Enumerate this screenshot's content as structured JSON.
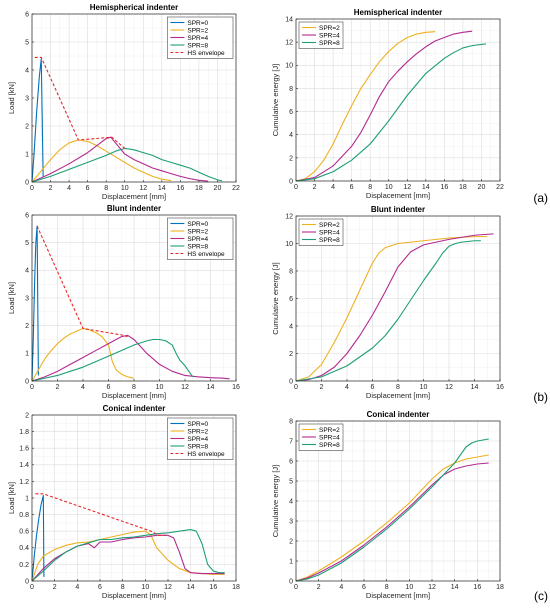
{
  "panel_labels": [
    "(a)",
    "(b)",
    "(c)"
  ],
  "chart_data": [
    {
      "type": "line",
      "title": "Hemispherical indenter",
      "xlabel": "Displacement [mm]",
      "ylabel": "Load [kN]",
      "xlim": [
        0,
        22
      ],
      "ylim": [
        0,
        6
      ],
      "xticks": [
        0,
        2,
        4,
        6,
        8,
        10,
        12,
        14,
        16,
        18,
        20,
        22
      ],
      "yticks": [
        0,
        1,
        2,
        3,
        4,
        5,
        6
      ],
      "grid": true,
      "legend_position": "top-right",
      "series": [
        {
          "name": "SPR=0",
          "color": "#0072bd",
          "dash": false,
          "x": [
            0,
            0.2,
            0.5,
            0.8,
            1.0,
            1.2
          ],
          "y": [
            0,
            0.9,
            2.5,
            3.8,
            4.4,
            0.2
          ]
        },
        {
          "name": "SPR=2",
          "color": "#edb120",
          "dash": false,
          "x": [
            0,
            1,
            2,
            3,
            4,
            5,
            6,
            7,
            8,
            9,
            10,
            11,
            12,
            13,
            14,
            15
          ],
          "y": [
            0,
            0.4,
            0.8,
            1.15,
            1.4,
            1.5,
            1.45,
            1.3,
            1.1,
            0.9,
            0.7,
            0.5,
            0.35,
            0.2,
            0.1,
            0.05
          ]
        },
        {
          "name": "SPR=4",
          "color": "#b2298f",
          "dash": false,
          "x": [
            0,
            2,
            4,
            6,
            7,
            8,
            8.5,
            9,
            10,
            11,
            12,
            13,
            14,
            15,
            16,
            17,
            18,
            19
          ],
          "y": [
            0,
            0.3,
            0.65,
            1.05,
            1.3,
            1.55,
            1.6,
            1.4,
            1.0,
            0.8,
            0.65,
            0.5,
            0.4,
            0.3,
            0.2,
            0.12,
            0.06,
            0.03
          ]
        },
        {
          "name": "SPR=8",
          "color": "#1b9e77",
          "dash": false,
          "x": [
            0,
            2,
            4,
            6,
            8,
            9,
            10,
            11,
            12,
            13,
            14,
            15,
            16,
            17,
            18,
            19,
            20,
            20.5
          ],
          "y": [
            0,
            0.2,
            0.45,
            0.7,
            0.95,
            1.1,
            1.2,
            1.15,
            1.05,
            0.95,
            0.8,
            0.7,
            0.6,
            0.5,
            0.35,
            0.2,
            0.08,
            0.04
          ]
        },
        {
          "name": "HS envelope",
          "color": "#e8292a",
          "dash": true,
          "x": [
            0.3,
            1.0,
            5.0,
            8.6,
            10.0
          ],
          "y": [
            4.45,
            4.45,
            1.5,
            1.6,
            1.2
          ]
        }
      ]
    },
    {
      "type": "line",
      "title": "Hemispherical indenter",
      "xlabel": "Displacement [mm]",
      "ylabel": "Cumulative energy [J]",
      "xlim": [
        0,
        22
      ],
      "ylim": [
        0,
        14
      ],
      "xticks": [
        0,
        2,
        4,
        6,
        8,
        10,
        12,
        14,
        16,
        18,
        20,
        22
      ],
      "yticks": [
        0,
        2,
        4,
        6,
        8,
        10,
        12,
        14
      ],
      "grid": true,
      "legend_position": "top-left",
      "series": [
        {
          "name": "SPR=2",
          "color": "#edb120",
          "dash": false,
          "x": [
            0,
            1,
            2,
            3,
            4,
            5,
            6,
            7,
            8,
            9,
            10,
            11,
            12,
            13,
            14,
            15
          ],
          "y": [
            0,
            0.2,
            0.8,
            1.8,
            3.2,
            4.9,
            6.5,
            8.0,
            9.2,
            10.3,
            11.2,
            11.9,
            12.4,
            12.7,
            12.85,
            12.9
          ]
        },
        {
          "name": "SPR=4",
          "color": "#b2298f",
          "dash": false,
          "x": [
            0,
            2,
            4,
            6,
            7,
            8,
            9,
            10,
            11,
            12,
            13,
            14,
            15,
            16,
            17,
            18,
            19
          ],
          "y": [
            0,
            0.3,
            1.3,
            3.0,
            4.2,
            5.7,
            7.3,
            8.6,
            9.5,
            10.3,
            11.0,
            11.6,
            12.1,
            12.4,
            12.7,
            12.85,
            12.95
          ]
        },
        {
          "name": "SPR=8",
          "color": "#1b9e77",
          "dash": false,
          "x": [
            0,
            2,
            4,
            6,
            8,
            10,
            12,
            14,
            16,
            17,
            18,
            19,
            20,
            20.5
          ],
          "y": [
            0,
            0.2,
            0.8,
            1.8,
            3.2,
            5.2,
            7.4,
            9.3,
            10.6,
            11.1,
            11.5,
            11.7,
            11.8,
            11.85
          ]
        }
      ]
    },
    {
      "type": "line",
      "title": "Blunt indenter",
      "xlabel": "Displacement [mm]",
      "ylabel": "Load [kN]",
      "xlim": [
        0,
        16
      ],
      "ylim": [
        0,
        6
      ],
      "xticks": [
        0,
        2,
        4,
        6,
        8,
        10,
        12,
        14,
        16
      ],
      "yticks": [
        0,
        1,
        2,
        3,
        4,
        5,
        6
      ],
      "grid": true,
      "legend_position": "top-right",
      "series": [
        {
          "name": "SPR=0",
          "color": "#0072bd",
          "dash": false,
          "x": [
            0,
            0.1,
            0.2,
            0.3,
            0.4,
            0.5
          ],
          "y": [
            0,
            1.5,
            3.5,
            5.0,
            5.6,
            0.2
          ]
        },
        {
          "name": "SPR=2",
          "color": "#edb120",
          "dash": false,
          "x": [
            0,
            0.5,
            1,
            1.5,
            2,
            2.5,
            3,
            3.5,
            4,
            4.5,
            5,
            5.5,
            6,
            6.3,
            6.6,
            7,
            7.5,
            8
          ],
          "y": [
            0,
            0.4,
            0.8,
            1.1,
            1.35,
            1.55,
            1.7,
            1.8,
            1.9,
            1.85,
            1.75,
            1.6,
            1.3,
            0.7,
            0.4,
            0.25,
            0.15,
            0.1
          ]
        },
        {
          "name": "SPR=4",
          "color": "#b2298f",
          "dash": false,
          "x": [
            0,
            1,
            2,
            3,
            4,
            5,
            6,
            7,
            7.5,
            8,
            8.5,
            9,
            10,
            11,
            12,
            13,
            14,
            15,
            15.5
          ],
          "y": [
            0,
            0.15,
            0.35,
            0.6,
            0.85,
            1.1,
            1.35,
            1.6,
            1.65,
            1.5,
            1.25,
            1.0,
            0.6,
            0.35,
            0.2,
            0.15,
            0.12,
            0.1,
            0.08
          ]
        },
        {
          "name": "SPR=8",
          "color": "#1b9e77",
          "dash": false,
          "x": [
            0,
            1,
            2,
            3,
            4,
            5,
            6,
            7,
            8,
            9,
            9.5,
            10,
            10.5,
            11,
            11.3,
            11.6,
            12,
            12.3,
            12.6
          ],
          "y": [
            0,
            0.1,
            0.2,
            0.35,
            0.5,
            0.7,
            0.9,
            1.1,
            1.3,
            1.45,
            1.5,
            1.5,
            1.45,
            1.3,
            1.0,
            0.75,
            0.55,
            0.35,
            0.15
          ]
        },
        {
          "name": "HS envelope",
          "color": "#e8292a",
          "dash": true,
          "x": [
            0.4,
            4.0,
            7.2,
            7.5
          ],
          "y": [
            5.6,
            1.9,
            1.65,
            1.6
          ]
        }
      ]
    },
    {
      "type": "line",
      "title": "Blunt indenter",
      "xlabel": "Displacement [mm]",
      "ylabel": "Cumulative energy [J]",
      "xlim": [
        0,
        16
      ],
      "ylim": [
        0,
        12
      ],
      "xticks": [
        0,
        2,
        4,
        6,
        8,
        10,
        12,
        14,
        16
      ],
      "yticks": [
        0,
        2,
        4,
        6,
        8,
        10,
        12
      ],
      "grid": true,
      "legend_position": "top-left",
      "series": [
        {
          "name": "SPR=2",
          "color": "#edb120",
          "dash": false,
          "x": [
            0,
            1,
            2,
            3,
            4,
            5,
            5.5,
            6,
            6.5,
            7,
            8,
            10,
            12,
            14,
            15
          ],
          "y": [
            0,
            0.3,
            1.2,
            2.8,
            4.6,
            6.6,
            7.6,
            8.6,
            9.3,
            9.7,
            10.0,
            10.2,
            10.4,
            10.5,
            10.5
          ]
        },
        {
          "name": "SPR=4",
          "color": "#b2298f",
          "dash": false,
          "x": [
            0,
            1,
            2,
            3,
            4,
            5,
            6,
            7,
            7.5,
            8,
            9,
            10,
            12,
            14,
            15.5
          ],
          "y": [
            0,
            0.1,
            0.4,
            1.0,
            2.0,
            3.3,
            4.8,
            6.5,
            7.4,
            8.3,
            9.4,
            9.9,
            10.3,
            10.6,
            10.7
          ]
        },
        {
          "name": "SPR=8",
          "color": "#1b9e77",
          "dash": false,
          "x": [
            0,
            2,
            4,
            6,
            7,
            8,
            9,
            10,
            11,
            11.5,
            12,
            12.5,
            13,
            14,
            14.5
          ],
          "y": [
            0,
            0.3,
            1.1,
            2.4,
            3.3,
            4.5,
            5.9,
            7.3,
            8.6,
            9.3,
            9.8,
            10.0,
            10.1,
            10.2,
            10.2
          ]
        }
      ]
    },
    {
      "type": "line",
      "title": "Conical indenter",
      "xlabel": "Displacement [mm]",
      "ylabel": "Load [kN]",
      "xlim": [
        0,
        18
      ],
      "ylim": [
        0,
        2
      ],
      "xticks": [
        0,
        2,
        4,
        6,
        8,
        10,
        12,
        14,
        16,
        18
      ],
      "yticks": [
        0,
        0.2,
        0.4,
        0.6,
        0.8,
        1,
        1.2,
        1.4,
        1.6,
        1.8,
        2
      ],
      "grid": true,
      "legend_position": "top-right",
      "series": [
        {
          "name": "SPR=0",
          "color": "#0072bd",
          "dash": false,
          "x": [
            0,
            0.2,
            0.4,
            0.6,
            0.8,
            1.0,
            1.05
          ],
          "y": [
            0,
            0.3,
            0.55,
            0.75,
            0.92,
            1.03,
            0.05
          ]
        },
        {
          "name": "SPR=2",
          "color": "#edb120",
          "dash": false,
          "x": [
            0,
            0.5,
            1,
            2,
            3,
            4,
            5,
            6,
            7,
            8,
            9,
            10,
            10.5,
            11,
            12,
            13,
            14,
            15,
            16,
            17
          ],
          "y": [
            0,
            0.2,
            0.3,
            0.38,
            0.43,
            0.46,
            0.47,
            0.5,
            0.53,
            0.56,
            0.59,
            0.6,
            0.55,
            0.4,
            0.25,
            0.15,
            0.1,
            0.09,
            0.08,
            0.08
          ]
        },
        {
          "name": "SPR=4",
          "color": "#b2298f",
          "dash": false,
          "x": [
            0,
            1,
            2,
            3,
            4,
            5,
            5.5,
            6,
            7,
            8,
            9,
            10,
            11,
            12,
            12.5,
            13,
            13.5,
            14,
            15,
            16,
            17
          ],
          "y": [
            0,
            0.15,
            0.27,
            0.35,
            0.42,
            0.45,
            0.4,
            0.47,
            0.47,
            0.5,
            0.52,
            0.53,
            0.55,
            0.55,
            0.52,
            0.35,
            0.15,
            0.1,
            0.09,
            0.09,
            0.09
          ]
        },
        {
          "name": "SPR=8",
          "color": "#1b9e77",
          "dash": false,
          "x": [
            0,
            1,
            2,
            3,
            4,
            5,
            6,
            7,
            8,
            9,
            10,
            11,
            12,
            13,
            14,
            14.5,
            15,
            15.5,
            16,
            16.5,
            17
          ],
          "y": [
            0,
            0.12,
            0.25,
            0.35,
            0.42,
            0.46,
            0.5,
            0.5,
            0.52,
            0.53,
            0.55,
            0.57,
            0.58,
            0.6,
            0.62,
            0.6,
            0.45,
            0.2,
            0.12,
            0.1,
            0.1
          ]
        },
        {
          "name": "HS envelope",
          "color": "#e8292a",
          "dash": true,
          "x": [
            0.3,
            1.0,
            10.5,
            11.2,
            12.0
          ],
          "y": [
            1.05,
            1.05,
            0.6,
            0.55,
            0.55
          ]
        }
      ]
    },
    {
      "type": "line",
      "title": "Conical indenter",
      "xlabel": "Displacement [mm]",
      "ylabel": "Cumulative energy [J]",
      "xlim": [
        0,
        18
      ],
      "ylim": [
        0,
        8
      ],
      "xticks": [
        0,
        2,
        4,
        6,
        8,
        10,
        12,
        14,
        16,
        18
      ],
      "yticks": [
        0,
        1,
        2,
        3,
        4,
        5,
        6,
        7,
        8
      ],
      "grid": true,
      "legend_position": "top-left",
      "series": [
        {
          "name": "SPR=2",
          "color": "#edb120",
          "dash": false,
          "x": [
            0,
            1,
            2,
            4,
            6,
            8,
            10,
            11,
            12,
            13,
            14,
            15,
            16,
            17
          ],
          "y": [
            0,
            0.2,
            0.5,
            1.2,
            2.0,
            2.9,
            3.9,
            4.5,
            5.1,
            5.6,
            5.9,
            6.1,
            6.2,
            6.3
          ]
        },
        {
          "name": "SPR=4",
          "color": "#b2298f",
          "dash": false,
          "x": [
            0,
            1,
            2,
            4,
            6,
            8,
            10,
            12,
            13,
            14,
            15,
            16,
            17
          ],
          "y": [
            0,
            0.15,
            0.4,
            1.0,
            1.8,
            2.7,
            3.7,
            4.8,
            5.3,
            5.6,
            5.75,
            5.85,
            5.9
          ]
        },
        {
          "name": "SPR=8",
          "color": "#1b9e77",
          "dash": false,
          "x": [
            0,
            1,
            2,
            4,
            6,
            8,
            10,
            12,
            13,
            14,
            14.5,
            15,
            15.5,
            16,
            17
          ],
          "y": [
            0,
            0.1,
            0.3,
            0.9,
            1.7,
            2.6,
            3.6,
            4.7,
            5.3,
            5.9,
            6.3,
            6.7,
            6.9,
            7.0,
            7.1
          ]
        }
      ]
    }
  ]
}
